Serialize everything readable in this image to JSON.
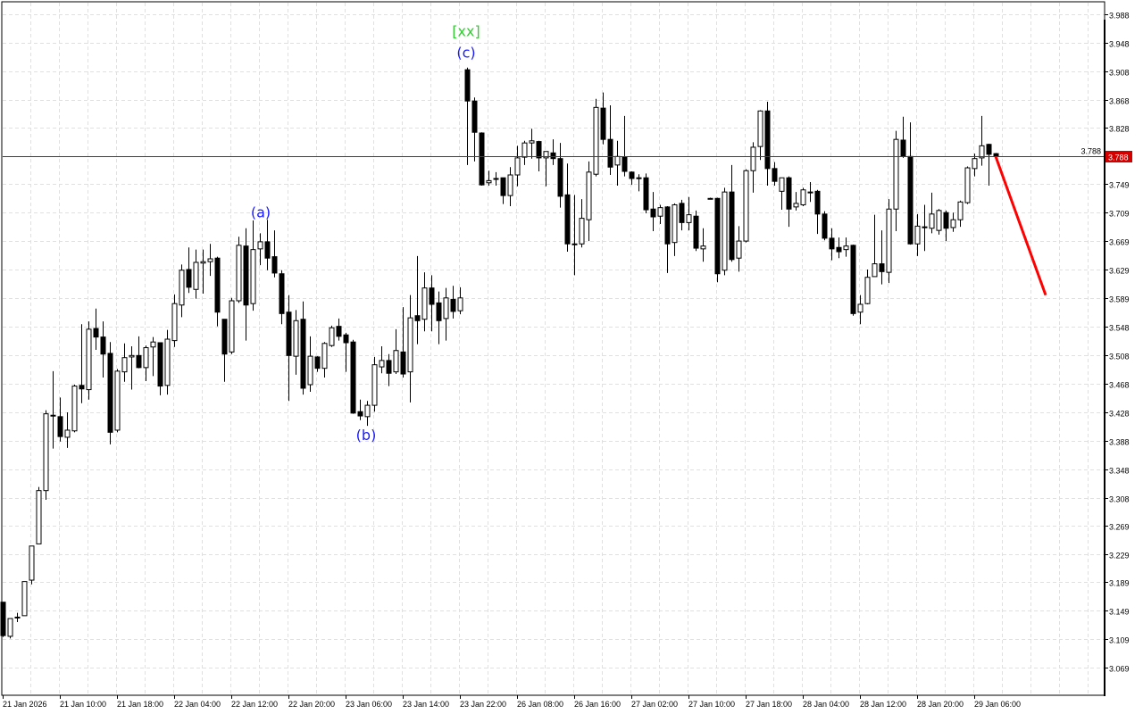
{
  "chart_data": {
    "type": "candlestick",
    "ylim": [
      3.069,
      3.988
    ],
    "grid": true,
    "y_ticks": [
      "3.988",
      "3.948",
      "3.908",
      "3.868",
      "3.828",
      "3.788",
      "3.749",
      "3.709",
      "3.669",
      "3.629",
      "3.589",
      "3.548",
      "3.508",
      "3.468",
      "3.428",
      "3.388",
      "3.348",
      "3.308",
      "3.269",
      "3.229",
      "3.189",
      "3.149",
      "3.109",
      "3.069"
    ],
    "x_labels": [
      "21 Jan 2026",
      "21 Jan 10:00",
      "21 Jan 18:00",
      "22 Jan 04:00",
      "22 Jan 12:00",
      "22 Jan 20:00",
      "23 Jan 06:00",
      "23 Jan 14:00",
      "23 Jan 22:00",
      "26 Jan 08:00",
      "26 Jan 16:00",
      "27 Jan 02:00",
      "27 Jan 10:00",
      "27 Jan 18:00",
      "28 Jan 04:00",
      "28 Jan 12:00",
      "28 Jan 20:00",
      "29 Jan 06:00"
    ],
    "current_price": {
      "label": "3.788",
      "value": 3.788,
      "color": "#d40000"
    },
    "forecast": {
      "from": 3.788,
      "to": 3.593,
      "color": "#ff0000"
    },
    "colors": {
      "bull_fill": "#ffffff",
      "bear_fill": "#000000",
      "outline": "#000000",
      "grid": "#e0e0e0"
    },
    "annotations": [
      {
        "text": "(a)",
        "color": "#1a1aff"
      },
      {
        "text": "(b)",
        "color": "#1a1aff"
      },
      {
        "text": "(c)",
        "color": "#1a1aff"
      },
      {
        "text": "[xx]",
        "color": "#33cc33"
      }
    ],
    "ohlc_columns": [
      "open",
      "high",
      "low",
      "close"
    ],
    "candles": [
      [
        3.161,
        3.161,
        3.112,
        3.114
      ],
      [
        3.113,
        3.138,
        3.11,
        3.138
      ],
      [
        3.139,
        3.146,
        3.133,
        3.14
      ],
      [
        3.142,
        3.19,
        3.142,
        3.19
      ],
      [
        3.192,
        3.24,
        3.186,
        3.24
      ],
      [
        3.243,
        3.323,
        3.243,
        3.318
      ],
      [
        3.318,
        3.431,
        3.305,
        3.426
      ],
      [
        3.424,
        3.486,
        3.377,
        3.423
      ],
      [
        3.422,
        3.449,
        3.387,
        3.394
      ],
      [
        3.393,
        3.428,
        3.378,
        3.403
      ],
      [
        3.402,
        3.467,
        3.4,
        3.465
      ],
      [
        3.466,
        3.552,
        3.441,
        3.461
      ],
      [
        3.46,
        3.556,
        3.446,
        3.545
      ],
      [
        3.546,
        3.574,
        3.516,
        3.534
      ],
      [
        3.534,
        3.556,
        3.477,
        3.51
      ],
      [
        3.511,
        3.527,
        3.383,
        3.4
      ],
      [
        3.403,
        3.489,
        3.4,
        3.486
      ],
      [
        3.485,
        3.525,
        3.471,
        3.505
      ],
      [
        3.506,
        3.521,
        3.46,
        3.508
      ],
      [
        3.508,
        3.535,
        3.49,
        3.491
      ],
      [
        3.491,
        3.522,
        3.472,
        3.519
      ],
      [
        3.52,
        3.534,
        3.479,
        3.527
      ],
      [
        3.526,
        3.526,
        3.452,
        3.465
      ],
      [
        3.466,
        3.544,
        3.453,
        3.531
      ],
      [
        3.529,
        3.594,
        3.52,
        3.581
      ],
      [
        3.579,
        3.636,
        3.562,
        3.628
      ],
      [
        3.629,
        3.66,
        3.596,
        3.604
      ],
      [
        3.601,
        3.657,
        3.588,
        3.639
      ],
      [
        3.638,
        3.657,
        3.595,
        3.64
      ],
      [
        3.64,
        3.665,
        3.62,
        3.644
      ],
      [
        3.645,
        3.647,
        3.549,
        3.569
      ],
      [
        3.559,
        3.559,
        3.471,
        3.51
      ],
      [
        3.513,
        3.589,
        3.51,
        3.585
      ],
      [
        3.585,
        3.675,
        3.582,
        3.663
      ],
      [
        3.662,
        3.687,
        3.529,
        3.579
      ],
      [
        3.581,
        3.698,
        3.571,
        3.657
      ],
      [
        3.658,
        3.68,
        3.635,
        3.668
      ],
      [
        3.668,
        3.699,
        3.628,
        3.645
      ],
      [
        3.647,
        3.684,
        3.618,
        3.624
      ],
      [
        3.623,
        3.628,
        3.552,
        3.567
      ],
      [
        3.569,
        3.593,
        3.444,
        3.508
      ],
      [
        3.507,
        3.572,
        3.481,
        3.557
      ],
      [
        3.559,
        3.584,
        3.453,
        3.462
      ],
      [
        3.467,
        3.535,
        3.457,
        3.507
      ],
      [
        3.506,
        3.507,
        3.485,
        3.49
      ],
      [
        3.49,
        3.527,
        3.477,
        3.525
      ],
      [
        3.522,
        3.55,
        3.52,
        3.547
      ],
      [
        3.549,
        3.56,
        3.529,
        3.535
      ],
      [
        3.537,
        3.54,
        3.485,
        3.526
      ],
      [
        3.527,
        3.53,
        3.426,
        3.427
      ],
      [
        3.429,
        3.446,
        3.417,
        3.423
      ],
      [
        3.422,
        3.444,
        3.409,
        3.438
      ],
      [
        3.438,
        3.506,
        3.429,
        3.495
      ],
      [
        3.492,
        3.521,
        3.483,
        3.501
      ],
      [
        3.501,
        3.51,
        3.465,
        3.483
      ],
      [
        3.485,
        3.545,
        3.482,
        3.515
      ],
      [
        3.513,
        3.576,
        3.477,
        3.482
      ],
      [
        3.485,
        3.593,
        3.442,
        3.561
      ],
      [
        3.564,
        3.648,
        3.524,
        3.557
      ],
      [
        3.559,
        3.625,
        3.542,
        3.603
      ],
      [
        3.603,
        3.621,
        3.542,
        3.58
      ],
      [
        3.582,
        3.598,
        3.524,
        3.557
      ],
      [
        3.56,
        3.603,
        3.529,
        3.589
      ],
      [
        3.587,
        3.606,
        3.56,
        3.57
      ],
      [
        3.571,
        3.604,
        3.566,
        3.589
      ],
      [
        3.91,
        3.913,
        3.776,
        3.866
      ],
      [
        3.866,
        3.871,
        3.781,
        3.822
      ],
      [
        3.821,
        3.822,
        3.747,
        3.748
      ],
      [
        3.751,
        3.768,
        3.747,
        3.754
      ],
      [
        3.757,
        3.766,
        3.747,
        3.757
      ],
      [
        3.758,
        3.758,
        3.721,
        3.733
      ],
      [
        3.733,
        3.773,
        3.718,
        3.762
      ],
      [
        3.762,
        3.803,
        3.746,
        3.786
      ],
      [
        3.787,
        3.81,
        3.776,
        3.807
      ],
      [
        3.807,
        3.827,
        3.785,
        3.81
      ],
      [
        3.809,
        3.81,
        3.767,
        3.786
      ],
      [
        3.786,
        3.795,
        3.746,
        3.795
      ],
      [
        3.793,
        3.812,
        3.776,
        3.785
      ],
      [
        3.785,
        3.807,
        3.716,
        3.732
      ],
      [
        3.734,
        3.778,
        3.654,
        3.665
      ],
      [
        3.665,
        3.734,
        3.621,
        3.664
      ],
      [
        3.665,
        3.728,
        3.66,
        3.701
      ],
      [
        3.699,
        3.781,
        3.669,
        3.766
      ],
      [
        3.763,
        3.869,
        3.76,
        3.857
      ],
      [
        3.856,
        3.878,
        3.805,
        3.812
      ],
      [
        3.812,
        3.86,
        3.762,
        3.773
      ],
      [
        3.776,
        3.81,
        3.747,
        3.788
      ],
      [
        3.787,
        3.845,
        3.76,
        3.767
      ],
      [
        3.766,
        3.767,
        3.748,
        3.757
      ],
      [
        3.758,
        3.763,
        3.739,
        3.757
      ],
      [
        3.758,
        3.764,
        3.708,
        3.713
      ],
      [
        3.714,
        3.738,
        3.683,
        3.703
      ],
      [
        3.704,
        3.72,
        3.693,
        3.716
      ],
      [
        3.717,
        3.718,
        3.624,
        3.665
      ],
      [
        3.667,
        3.722,
        3.648,
        3.72
      ],
      [
        3.722,
        3.727,
        3.684,
        3.695
      ],
      [
        3.695,
        3.731,
        3.684,
        3.706
      ],
      [
        3.704,
        3.712,
        3.655,
        3.659
      ],
      [
        3.658,
        3.687,
        3.64,
        3.662
      ],
      [
        3.729,
        3.73,
        3.728,
        3.729
      ],
      [
        3.729,
        3.73,
        3.611,
        3.623
      ],
      [
        3.628,
        3.744,
        3.621,
        3.738
      ],
      [
        3.738,
        3.776,
        3.64,
        3.643
      ],
      [
        3.645,
        3.69,
        3.626,
        3.669
      ],
      [
        3.669,
        3.77,
        3.667,
        3.768
      ],
      [
        3.768,
        3.808,
        3.737,
        3.801
      ],
      [
        3.802,
        3.853,
        3.783,
        3.852
      ],
      [
        3.852,
        3.865,
        3.747,
        3.771
      ],
      [
        3.771,
        3.78,
        3.747,
        3.753
      ],
      [
        3.739,
        3.758,
        3.713,
        3.758
      ],
      [
        3.758,
        3.76,
        3.689,
        3.714
      ],
      [
        3.717,
        3.738,
        3.712,
        3.722
      ],
      [
        3.72,
        3.744,
        3.718,
        3.741
      ],
      [
        3.738,
        3.752,
        3.724,
        3.738
      ],
      [
        3.739,
        3.741,
        3.679,
        3.707
      ],
      [
        3.707,
        3.711,
        3.67,
        3.673
      ],
      [
        3.673,
        3.687,
        3.642,
        3.658
      ],
      [
        3.66,
        3.674,
        3.645,
        3.654
      ],
      [
        3.657,
        3.674,
        3.647,
        3.662
      ],
      [
        3.663,
        3.664,
        3.564,
        3.567
      ],
      [
        3.569,
        3.593,
        3.552,
        3.58
      ],
      [
        3.581,
        3.629,
        3.58,
        3.618
      ],
      [
        3.619,
        3.706,
        3.619,
        3.637
      ],
      [
        3.637,
        3.684,
        3.608,
        3.626
      ],
      [
        3.625,
        3.728,
        3.61,
        3.714
      ],
      [
        3.714,
        3.824,
        3.683,
        3.812
      ],
      [
        3.811,
        3.844,
        3.786,
        3.788
      ],
      [
        3.788,
        3.836,
        3.664,
        3.665
      ],
      [
        3.665,
        3.707,
        3.648,
        3.69
      ],
      [
        3.688,
        3.72,
        3.655,
        3.689
      ],
      [
        3.687,
        3.737,
        3.68,
        3.707
      ],
      [
        3.684,
        3.714,
        3.678,
        3.712
      ],
      [
        3.709,
        3.712,
        3.669,
        3.687
      ],
      [
        3.688,
        3.709,
        3.682,
        3.699
      ],
      [
        3.699,
        3.726,
        3.689,
        3.724
      ],
      [
        3.723,
        3.774,
        3.721,
        3.772
      ],
      [
        3.771,
        3.792,
        3.76,
        3.785
      ],
      [
        3.786,
        3.845,
        3.775,
        3.803
      ],
      [
        3.805,
        3.806,
        3.747,
        3.791
      ],
      [
        3.792,
        3.793,
        3.787,
        3.788
      ]
    ]
  }
}
